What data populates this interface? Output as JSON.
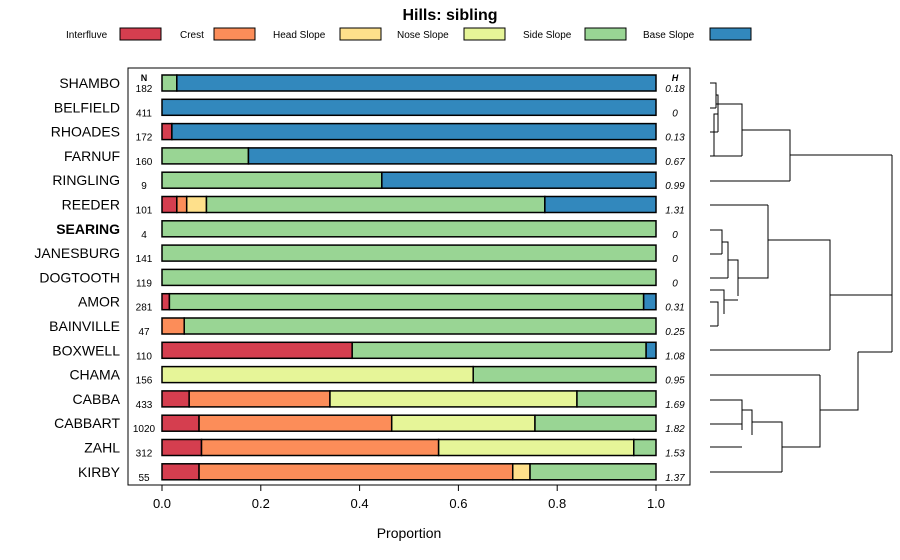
{
  "chart_data": {
    "type": "bar",
    "orientation": "horizontal",
    "stacked": true,
    "title": "Hills: sibling",
    "xlabel": "Proportion",
    "ylabel": "",
    "xlim": [
      0,
      1
    ],
    "xticks": [
      0.0,
      0.2,
      0.4,
      0.6,
      0.8,
      1.0
    ],
    "xtick_labels": [
      "0.0",
      "0.2",
      "0.4",
      "0.6",
      "0.8",
      "1.0"
    ],
    "legend_position": "top",
    "n_header": "N",
    "h_header": "H",
    "series": [
      {
        "name": "Interfluve",
        "color": "#d53e4f"
      },
      {
        "name": "Crest",
        "color": "#fc8d59"
      },
      {
        "name": "Head Slope",
        "color": "#fee08b"
      },
      {
        "name": "Nose Slope",
        "color": "#e6f598"
      },
      {
        "name": "Side Slope",
        "color": "#99d594"
      },
      {
        "name": "Base Slope",
        "color": "#3288bd"
      }
    ],
    "rows": [
      {
        "name": "SHAMBO",
        "n": "182",
        "h": "0.18",
        "bold": false,
        "values": [
          0,
          0,
          0,
          0,
          0.03,
          0.97
        ]
      },
      {
        "name": "BELFIELD",
        "n": "411",
        "h": "0",
        "bold": false,
        "values": [
          0,
          0,
          0,
          0,
          0,
          1.0
        ]
      },
      {
        "name": "RHOADES",
        "n": "172",
        "h": "0.13",
        "bold": false,
        "values": [
          0.02,
          0,
          0,
          0,
          0,
          0.98
        ]
      },
      {
        "name": "FARNUF",
        "n": "160",
        "h": "0.67",
        "bold": false,
        "values": [
          0,
          0,
          0,
          0,
          0.175,
          0.825
        ]
      },
      {
        "name": "RINGLING",
        "n": "9",
        "h": "0.99",
        "bold": false,
        "values": [
          0,
          0,
          0,
          0,
          0.445,
          0.555
        ]
      },
      {
        "name": "REEDER",
        "n": "101",
        "h": "1.31",
        "bold": false,
        "values": [
          0.03,
          0.02,
          0.04,
          0,
          0.685,
          0.225
        ]
      },
      {
        "name": "SEARING",
        "n": "4",
        "h": "0",
        "bold": true,
        "values": [
          0,
          0,
          0,
          0,
          1.0,
          0
        ]
      },
      {
        "name": "JANESBURG",
        "n": "141",
        "h": "0",
        "bold": false,
        "values": [
          0,
          0,
          0,
          0,
          1.0,
          0
        ]
      },
      {
        "name": "DOGTOOTH",
        "n": "119",
        "h": "0",
        "bold": false,
        "values": [
          0,
          0,
          0,
          0,
          1.0,
          0
        ]
      },
      {
        "name": "AMOR",
        "n": "281",
        "h": "0.31",
        "bold": false,
        "values": [
          0.015,
          0,
          0,
          0,
          0.96,
          0.025
        ]
      },
      {
        "name": "BAINVILLE",
        "n": "47",
        "h": "0.25",
        "bold": false,
        "values": [
          0,
          0.045,
          0,
          0,
          0.955,
          0
        ]
      },
      {
        "name": "BOXWELL",
        "n": "110",
        "h": "1.08",
        "bold": false,
        "values": [
          0.385,
          0,
          0,
          0,
          0.595,
          0.02
        ]
      },
      {
        "name": "CHAMA",
        "n": "156",
        "h": "0.95",
        "bold": false,
        "values": [
          0,
          0,
          0,
          0.63,
          0.37,
          0
        ]
      },
      {
        "name": "CABBA",
        "n": "433",
        "h": "1.69",
        "bold": false,
        "values": [
          0.055,
          0.285,
          0,
          0.5,
          0.16,
          0
        ]
      },
      {
        "name": "CABBART",
        "n": "1020",
        "h": "1.82",
        "bold": false,
        "values": [
          0.075,
          0.39,
          0,
          0.29,
          0.245,
          0
        ]
      },
      {
        "name": "ZAHL",
        "n": "312",
        "h": "1.53",
        "bold": false,
        "values": [
          0.08,
          0.48,
          0,
          0.395,
          0.045,
          0
        ]
      },
      {
        "name": "KIRBY",
        "n": "55",
        "h": "1.37",
        "bold": false,
        "values": [
          0.075,
          0.635,
          0.035,
          0,
          0.255,
          0
        ]
      }
    ]
  }
}
